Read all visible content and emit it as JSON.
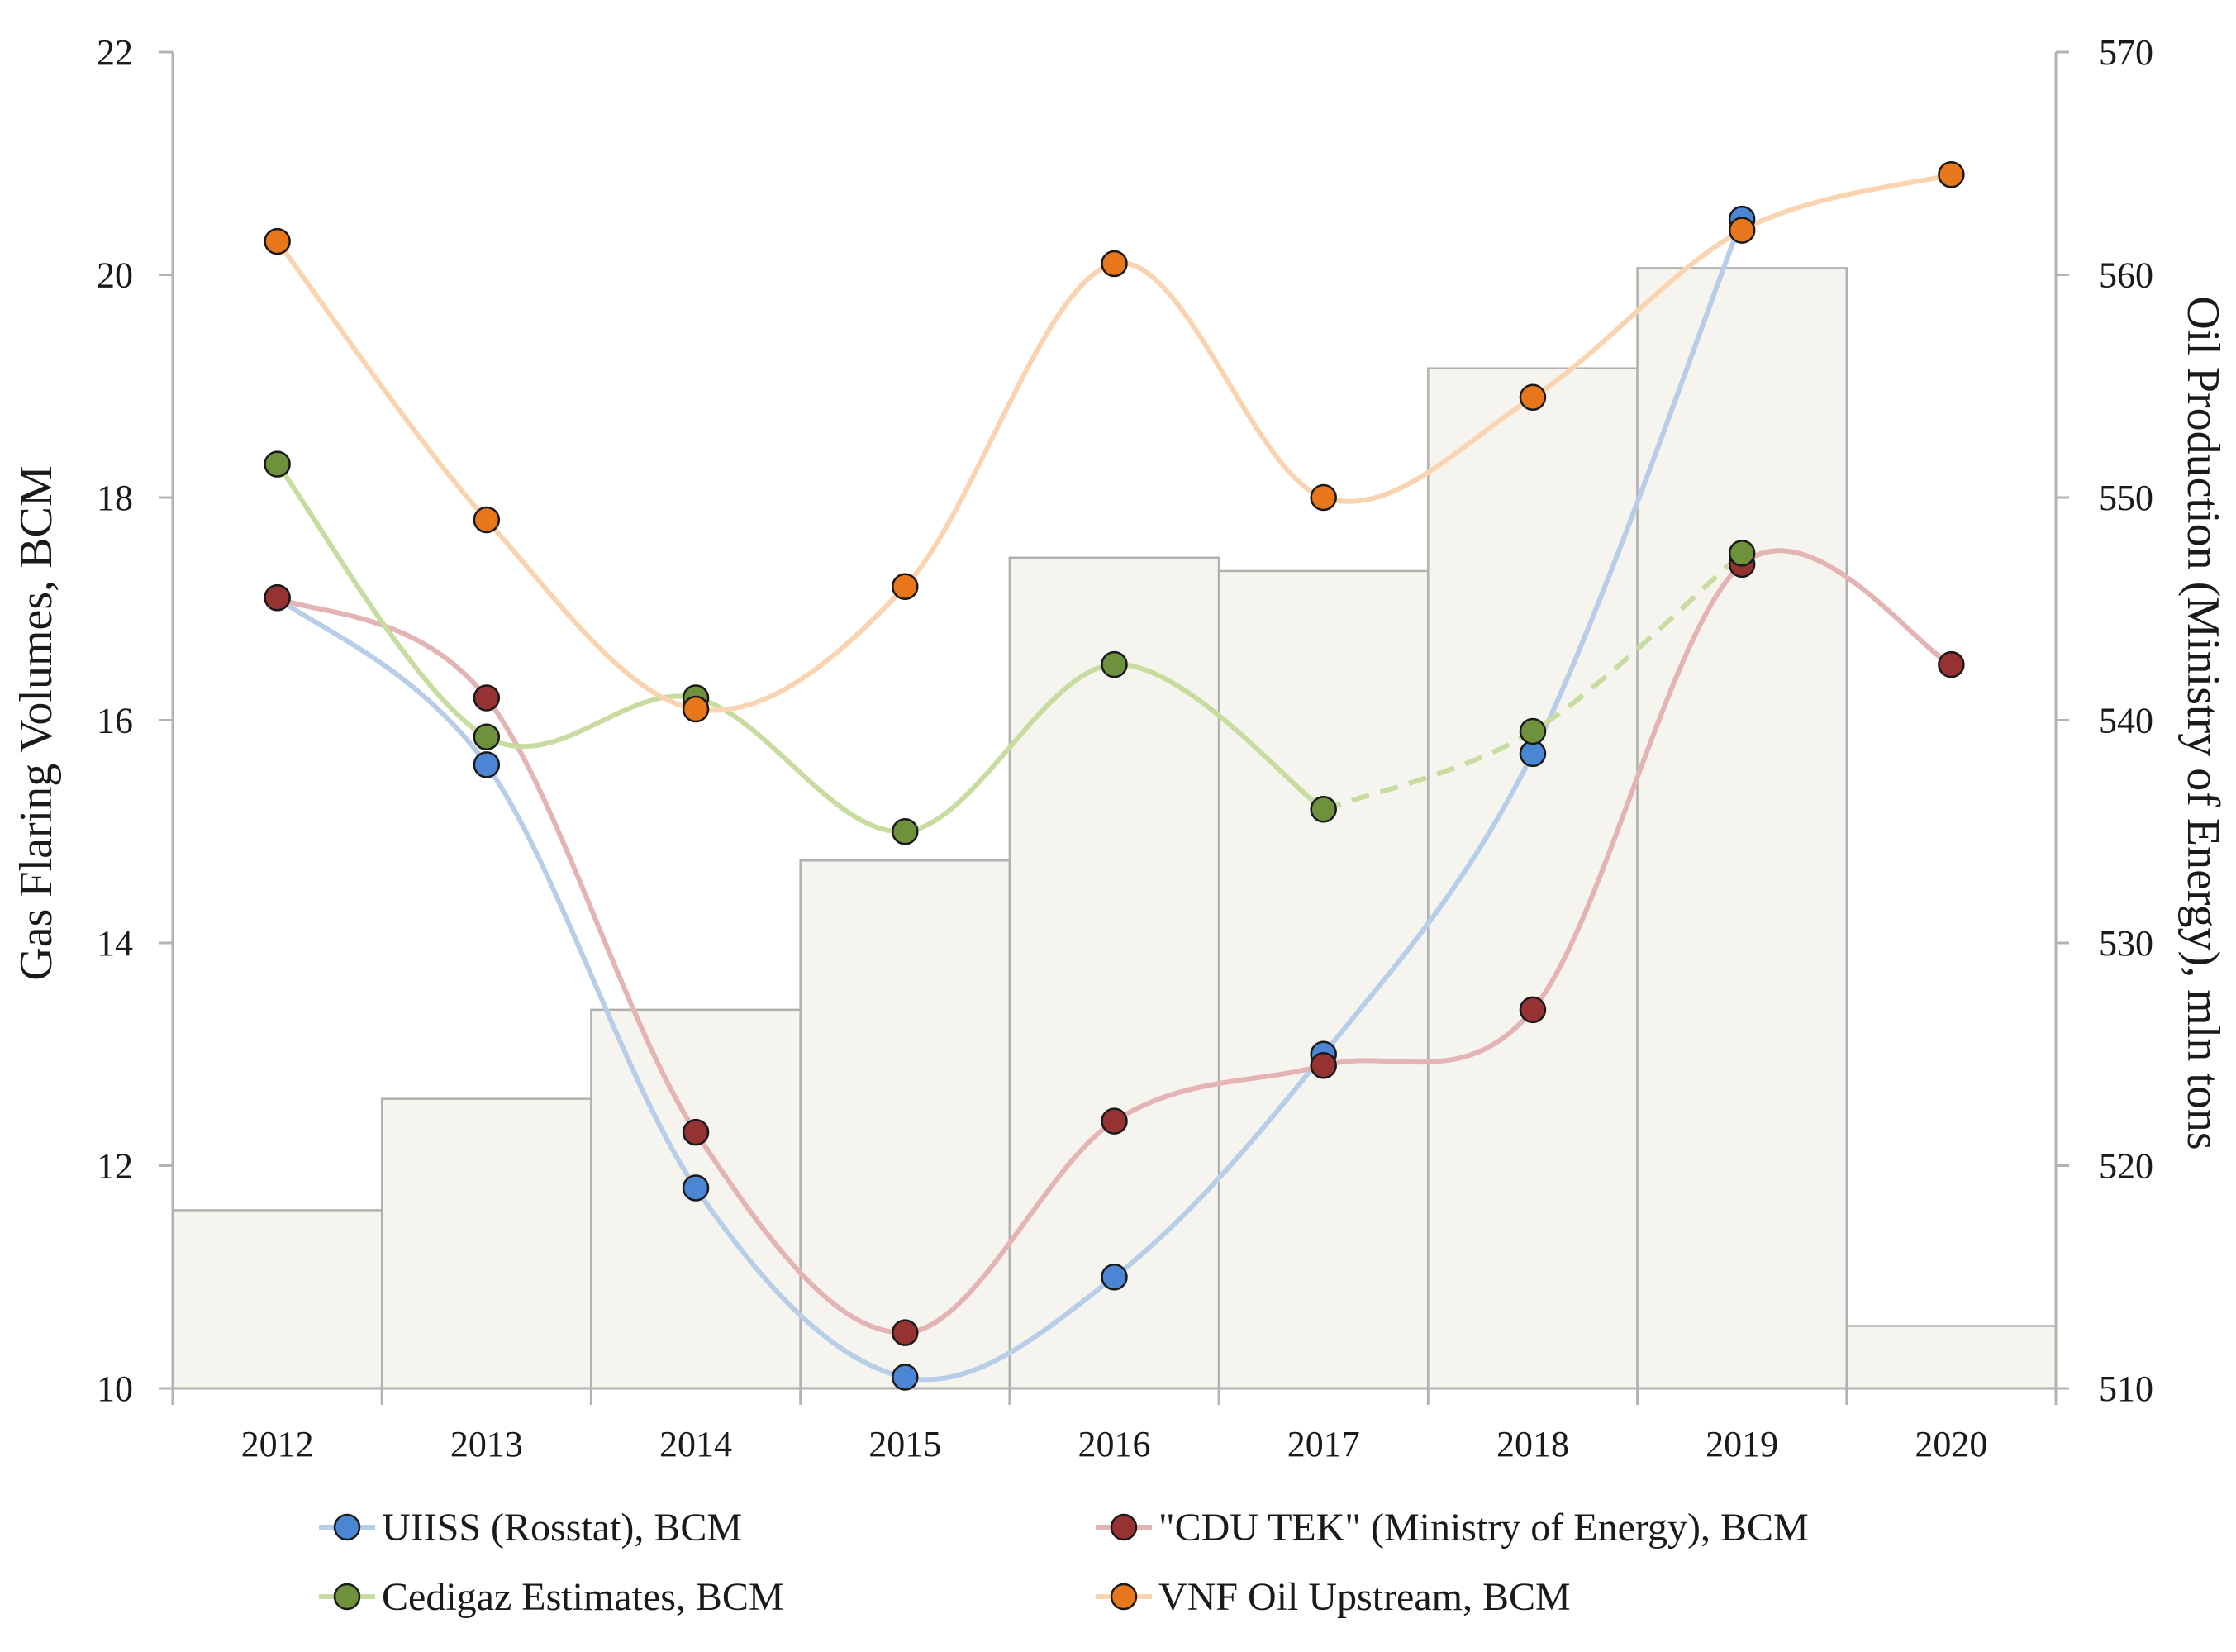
{
  "chart_data": {
    "type": "line+bar",
    "categories": [
      "2012",
      "2013",
      "2014",
      "2015",
      "2016",
      "2017",
      "2018",
      "2019",
      "2020"
    ],
    "ylabel": "Gas Flaring Volumes, BCM",
    "y2label": "Oil Production (Ministry of Energy), mln tons",
    "ylim": [
      10,
      22
    ],
    "yticks": [
      10,
      12,
      14,
      16,
      18,
      20,
      22
    ],
    "y2lim": [
      510,
      570
    ],
    "y2ticks": [
      510,
      520,
      530,
      540,
      550,
      560,
      570
    ],
    "bars": {
      "name": "Oil Production (Ministry of Energy), mln tons",
      "axis": "right",
      "values": [
        518.0,
        523.0,
        527.0,
        533.7,
        547.3,
        546.7,
        555.8,
        560.3,
        512.8
      ],
      "color": "#f5f4ef",
      "edge": "#b0b0b0"
    },
    "series": [
      {
        "name": "UIISS (Rosstat), BCM",
        "values": [
          17.1,
          15.6,
          11.8,
          10.1,
          11.0,
          13.0,
          15.7,
          20.5,
          null
        ],
        "marker": "#4a86d4",
        "line": "#b8cde8",
        "dashed_from_index": null
      },
      {
        "name": "\"CDU TEK\" (Ministry of Energy), BCM",
        "values": [
          17.1,
          16.2,
          12.3,
          10.5,
          12.4,
          12.9,
          13.4,
          17.4,
          16.5
        ],
        "marker": "#963232",
        "line": "#e4b4b4",
        "dashed_from_index": null
      },
      {
        "name": "Cedigaz Estimates, BCM",
        "values": [
          18.3,
          15.85,
          16.2,
          15.0,
          16.5,
          15.2,
          15.9,
          17.5,
          null
        ],
        "marker": "#6e913c",
        "line": "#c8dca0",
        "dashed_from_index": 5
      },
      {
        "name": "VNF Oil Upstream, BCM",
        "values": [
          20.3,
          17.8,
          16.1,
          17.2,
          20.1,
          18.0,
          18.9,
          20.4,
          20.9
        ],
        "marker": "#e8761a",
        "line": "#fad4b0",
        "dashed_from_index": null
      }
    ],
    "legend_position": "bottom",
    "grid": false
  }
}
